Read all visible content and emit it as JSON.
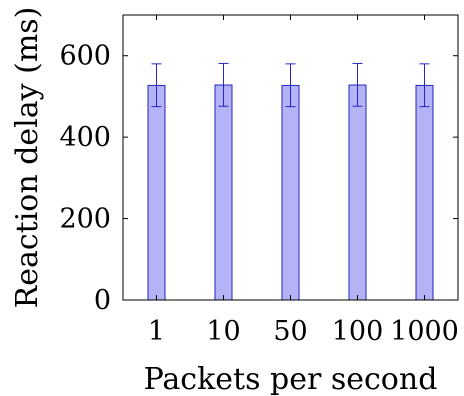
{
  "chart_data": {
    "type": "bar",
    "categories": [
      "1",
      "10",
      "50",
      "100",
      "1000"
    ],
    "values": [
      527,
      528,
      527,
      528,
      527
    ],
    "error": [
      [
        475,
        580
      ],
      [
        476,
        581
      ],
      [
        475,
        580
      ],
      [
        476,
        581
      ],
      [
        475,
        580
      ]
    ],
    "title": "",
    "xlabel": "Packets per second",
    "ylabel": "Reaction delay (ms)",
    "ylim": [
      0,
      700
    ],
    "yticks": [
      "0",
      "200",
      "400",
      "600"
    ],
    "grid": false,
    "colors": {
      "bar_fill": "#b3b3f5",
      "bar_stroke": "#2525c8",
      "error": "#2525c8",
      "axis": "#000000"
    }
  }
}
